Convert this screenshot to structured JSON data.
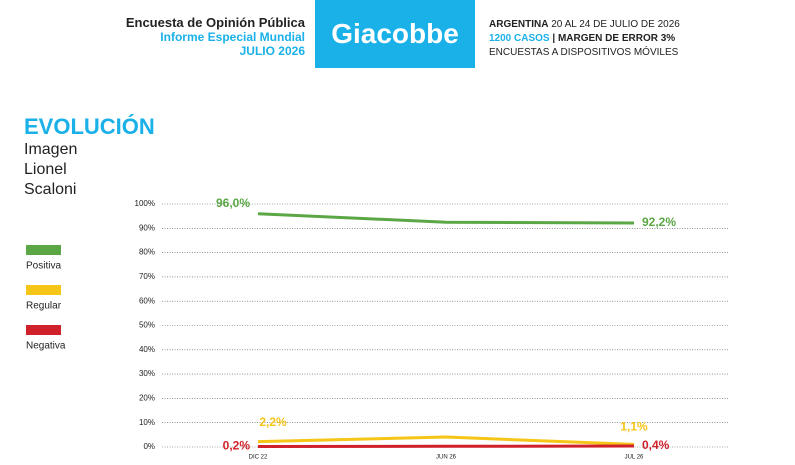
{
  "header": {
    "survey_title": "Encuesta de Opinión Pública",
    "report": "Informe Especial Mundial",
    "month": "JULIO 2026",
    "brand": "Giacobbe",
    "country": "ARGENTINA",
    "dates": "20 AL 24 DE JULIO DE 2026",
    "cases": "1200 CASOS",
    "margin": "| MARGEN DE ERROR 3%",
    "method": "ENCUESTAS A DISPOSITIVOS MÓVILES"
  },
  "chart_data": {
    "type": "line",
    "title": "EVOLUCIÓN",
    "subtitle": [
      "Imagen",
      "Lionel",
      "Scaloni"
    ],
    "categories": [
      "DIC 22",
      "JUN 26",
      "JUL 26"
    ],
    "series": [
      {
        "name": "Positiva",
        "color": "#5ba745",
        "values": [
          96.0,
          92.5,
          92.2
        ],
        "value_labels": [
          "96,0%",
          null,
          "92,2%"
        ]
      },
      {
        "name": "Regular",
        "color": "#f5c518",
        "values": [
          2.2,
          4.1,
          1.1
        ],
        "value_labels": [
          "2,2%",
          null,
          "1,1%"
        ]
      },
      {
        "name": "Negativa",
        "color": "#d0202a",
        "values": [
          0.2,
          0.3,
          0.4
        ],
        "value_labels": [
          "0,2%",
          null,
          "0,4%"
        ]
      }
    ],
    "ylim": [
      0,
      100
    ],
    "yticks": [
      {
        "value": 0,
        "label": "0%"
      },
      {
        "value": 10,
        "label": "10%"
      },
      {
        "value": 20,
        "label": "20%"
      },
      {
        "value": 30,
        "label": "30%"
      },
      {
        "value": 40,
        "label": "40%"
      },
      {
        "value": 50,
        "label": "50%"
      },
      {
        "value": 60,
        "label": "60%"
      },
      {
        "value": 70,
        "label": "70%"
      },
      {
        "value": 80,
        "label": "80%"
      },
      {
        "value": 90,
        "label": "90%"
      },
      {
        "value": 100,
        "label": "100%"
      }
    ],
    "grid": true,
    "legend": "left"
  }
}
